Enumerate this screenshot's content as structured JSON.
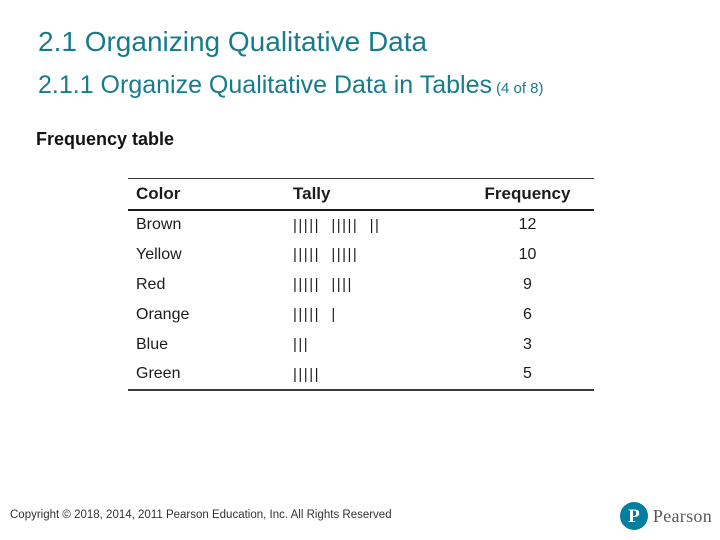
{
  "slide": {
    "title": "2.1 Organizing Qualitative Data",
    "subtitle": "2.1.1 Organize Qualitative Data in Tables",
    "subtitle_suffix": "(4 of 8)",
    "section_heading": "Frequency table"
  },
  "table": {
    "headers": [
      "Color",
      "Tally",
      "Frequency"
    ],
    "rows": [
      {
        "color": "Brown",
        "tally": "|||||  |||||  ||",
        "frequency": "12"
      },
      {
        "color": "Yellow",
        "tally": "|||||  |||||",
        "frequency": "10"
      },
      {
        "color": "Red",
        "tally": "|||||  ||||",
        "frequency": "9"
      },
      {
        "color": "Orange",
        "tally": "|||||  |",
        "frequency": "6"
      },
      {
        "color": "Blue",
        "tally": "|||",
        "frequency": "3"
      },
      {
        "color": "Green",
        "tally": "|||||",
        "frequency": "5"
      }
    ]
  },
  "chart_data": {
    "type": "table",
    "title": "Frequency table",
    "columns": [
      "Color",
      "Tally",
      "Frequency"
    ],
    "categories": [
      "Brown",
      "Yellow",
      "Red",
      "Orange",
      "Blue",
      "Green"
    ],
    "values": [
      12,
      10,
      9,
      6,
      3,
      5
    ]
  },
  "footer": {
    "copyright": "Copyright © 2018, 2014, 2011 Pearson Education, Inc. All Rights Reserved",
    "logo_letter": "P",
    "logo_text": "Pearson"
  },
  "colors": {
    "title_teal": "#177b8c",
    "pearson_logo_teal": "#007fa3",
    "body_text": "#1c1c1c",
    "footer_text": "#333333",
    "logo_wordmark_gray": "#57585b"
  }
}
